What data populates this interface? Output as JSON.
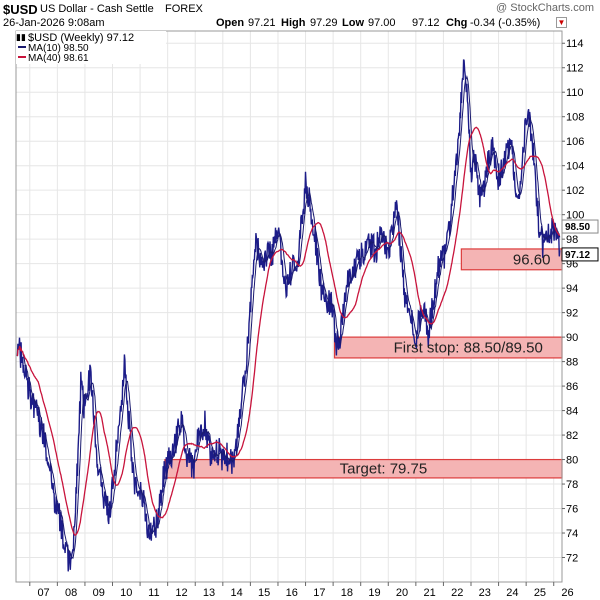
{
  "header": {
    "symbol": "$USD",
    "description": "US Dollar - Cash Settle",
    "exchange": "FOREX",
    "watermark": "@ StockCharts.com",
    "date": "26-Jan-2026 9:08am",
    "open_label": "Open",
    "open": "97.21",
    "high_label": "High",
    "high": "97.29",
    "low_label": "Low",
    "low": "97.00",
    "close_label": "",
    "close": "97.12",
    "chg_label": "Chg",
    "chg": "-0.34 (-0.35%)"
  },
  "legend": {
    "series_label": "$USD (Weekly) 97.12",
    "ma10_label": "MA(10) 98.50",
    "ma40_label": "MA(40) 98.61"
  },
  "colors": {
    "price": "#000000",
    "price_alt": "#1c1c88",
    "ma10": "#1a1a6e",
    "ma40": "#c8143c",
    "zone_fill": "#f4b4b4",
    "zone_stroke": "#dc3c3c",
    "grid": "#e6e6e6",
    "border": "#999999"
  },
  "chart_data": {
    "type": "line",
    "title": "$USD (Weekly)",
    "xlabel": "",
    "ylabel": "",
    "ylim": [
      70,
      115
    ],
    "xlim": [
      2006.5,
      2026.3
    ],
    "x_ticks": [
      "07",
      "08",
      "09",
      "10",
      "11",
      "12",
      "13",
      "14",
      "15",
      "16",
      "17",
      "18",
      "19",
      "20",
      "21",
      "22",
      "23",
      "24",
      "25",
      "26"
    ],
    "y_ticks": [
      72,
      74,
      76,
      78,
      80,
      82,
      84,
      86,
      88,
      90,
      92,
      94,
      96,
      98,
      100,
      102,
      104,
      106,
      108,
      110,
      112,
      114
    ],
    "anchors": [
      [
        2006.55,
        89.5
      ],
      [
        2006.8,
        87.5
      ],
      [
        2007.0,
        85.5
      ],
      [
        2007.3,
        83.5
      ],
      [
        2007.6,
        81.0
      ],
      [
        2007.9,
        76.5
      ],
      [
        2008.05,
        75.5
      ],
      [
        2008.3,
        72.5
      ],
      [
        2008.45,
        71.5
      ],
      [
        2008.6,
        74.0
      ],
      [
        2008.75,
        80.5
      ],
      [
        2008.85,
        86.0
      ],
      [
        2009.0,
        84.0
      ],
      [
        2009.2,
        87.0
      ],
      [
        2009.4,
        81.0
      ],
      [
        2009.7,
        76.5
      ],
      [
        2009.9,
        75.5
      ],
      [
        2010.05,
        79.0
      ],
      [
        2010.25,
        83.0
      ],
      [
        2010.45,
        88.0
      ],
      [
        2010.6,
        83.0
      ],
      [
        2010.8,
        78.0
      ],
      [
        2011.0,
        77.5
      ],
      [
        2011.15,
        76.5
      ],
      [
        2011.35,
        73.5
      ],
      [
        2011.5,
        74.5
      ],
      [
        2011.65,
        75.0
      ],
      [
        2011.8,
        78.0
      ],
      [
        2011.95,
        79.5
      ],
      [
        2012.2,
        80.5
      ],
      [
        2012.4,
        82.5
      ],
      [
        2012.55,
        83.0
      ],
      [
        2012.7,
        80.0
      ],
      [
        2012.95,
        79.5
      ],
      [
        2013.1,
        82.0
      ],
      [
        2013.35,
        83.0
      ],
      [
        2013.55,
        80.5
      ],
      [
        2013.75,
        81.0
      ],
      [
        2013.95,
        80.3
      ],
      [
        2014.15,
        80.2
      ],
      [
        2014.35,
        79.9
      ],
      [
        2014.5,
        81.0
      ],
      [
        2014.65,
        84.0
      ],
      [
        2014.85,
        88.0
      ],
      [
        2015.05,
        94.0
      ],
      [
        2015.2,
        98.0
      ],
      [
        2015.4,
        96.0
      ],
      [
        2015.6,
        97.0
      ],
      [
        2015.75,
        96.5
      ],
      [
        2015.95,
        98.5
      ],
      [
        2016.1,
        97.0
      ],
      [
        2016.3,
        94.0
      ],
      [
        2016.5,
        95.5
      ],
      [
        2016.7,
        96.0
      ],
      [
        2016.85,
        99.0
      ],
      [
        2017.0,
        102.5
      ],
      [
        2017.15,
        101.0
      ],
      [
        2017.35,
        98.0
      ],
      [
        2017.55,
        94.0
      ],
      [
        2017.75,
        93.0
      ],
      [
        2017.95,
        93.0
      ],
      [
        2018.1,
        89.5
      ],
      [
        2018.25,
        90.0
      ],
      [
        2018.4,
        93.0
      ],
      [
        2018.55,
        94.5
      ],
      [
        2018.75,
        95.5
      ],
      [
        2018.95,
        96.5
      ],
      [
        2019.15,
        96.8
      ],
      [
        2019.35,
        97.5
      ],
      [
        2019.55,
        97.0
      ],
      [
        2019.7,
        98.5
      ],
      [
        2019.9,
        97.5
      ],
      [
        2020.05,
        97.5
      ],
      [
        2020.2,
        99.5
      ],
      [
        2020.3,
        101.0
      ],
      [
        2020.45,
        97.0
      ],
      [
        2020.6,
        93.5
      ],
      [
        2020.8,
        92.5
      ],
      [
        2021.0,
        90.0
      ],
      [
        2021.15,
        91.5
      ],
      [
        2021.3,
        92.5
      ],
      [
        2021.45,
        90.0
      ],
      [
        2021.6,
        92.5
      ],
      [
        2021.85,
        96.0
      ],
      [
        2022.05,
        96.5
      ],
      [
        2022.25,
        99.5
      ],
      [
        2022.45,
        104.0
      ],
      [
        2022.6,
        108.0
      ],
      [
        2022.75,
        113.0
      ],
      [
        2022.85,
        110.5
      ],
      [
        2023.0,
        103.5
      ],
      [
        2023.15,
        104.5
      ],
      [
        2023.3,
        101.5
      ],
      [
        2023.5,
        102.5
      ],
      [
        2023.65,
        104.5
      ],
      [
        2023.8,
        106.0
      ],
      [
        2023.95,
        103.0
      ],
      [
        2024.1,
        103.5
      ],
      [
        2024.3,
        105.5
      ],
      [
        2024.5,
        105.0
      ],
      [
        2024.65,
        101.0
      ],
      [
        2024.75,
        100.8
      ],
      [
        2024.9,
        105.5
      ],
      [
        2025.05,
        108.5
      ],
      [
        2025.15,
        107.0
      ],
      [
        2025.3,
        104.0
      ],
      [
        2025.45,
        99.5
      ],
      [
        2025.6,
        97.5
      ],
      [
        2025.75,
        97.8
      ],
      [
        2025.9,
        98.5
      ],
      [
        2026.05,
        99.0
      ],
      [
        2026.15,
        98.0
      ],
      [
        2026.22,
        97.1
      ]
    ],
    "zones": [
      {
        "name": "zone-96-60",
        "x_start": 2022.65,
        "x_end": 2026.3,
        "y_low": 95.5,
        "y_high": 97.2,
        "label": "96.60"
      },
      {
        "name": "zone-first-stop",
        "x_start": 2018.05,
        "x_end": 2026.3,
        "y_low": 88.3,
        "y_high": 90.0,
        "label": "First stop: 88.50/89.50"
      },
      {
        "name": "zone-target",
        "x_start": 2011.9,
        "x_end": 2026.3,
        "y_low": 78.5,
        "y_high": 80.0,
        "label": "Target: 79.75"
      }
    ],
    "price_tags": [
      {
        "name": "ma10-tag",
        "value": "98.50",
        "y": 98.5
      },
      {
        "name": "close-tag",
        "value": "97.12",
        "y": 97.12
      }
    ]
  }
}
